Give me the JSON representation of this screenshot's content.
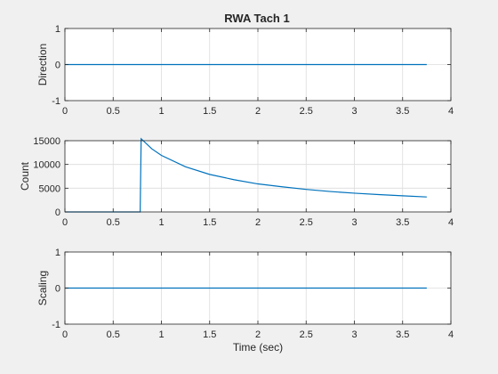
{
  "figure": {
    "title": "RWA Tach 1"
  },
  "colors": {
    "line": "#0072bd",
    "axes_bg": "#ffffff",
    "figure_bg": "#f0f0f0",
    "grid": "#dcdcdc",
    "axis": "#262626"
  },
  "chart_data": [
    {
      "type": "line",
      "title": "RWA Tach 1",
      "xlabel": "",
      "ylabel": "Direction",
      "xlim": [
        0,
        4
      ],
      "ylim": [
        -1,
        1
      ],
      "xticks": [
        0,
        0.5,
        1,
        1.5,
        2,
        2.5,
        3,
        3.5,
        4
      ],
      "xtick_labels": [
        "0",
        "0.5",
        "1",
        "1.5",
        "2",
        "2.5",
        "3",
        "3.5",
        "4"
      ],
      "yticks": [
        -1,
        0,
        1
      ],
      "ytick_labels": [
        "-1",
        "0",
        "1"
      ],
      "grid": true,
      "series": [
        {
          "x": [
            0,
            3.75
          ],
          "y": [
            0,
            0
          ]
        }
      ]
    },
    {
      "type": "line",
      "title": "",
      "xlabel": "",
      "ylabel": "Count",
      "xlim": [
        0,
        4
      ],
      "ylim": [
        0,
        15000
      ],
      "xticks": [
        0,
        0.5,
        1,
        1.5,
        2,
        2.5,
        3,
        3.5,
        4
      ],
      "xtick_labels": [
        "0",
        "0.5",
        "1",
        "1.5",
        "2",
        "2.5",
        "3",
        "3.5",
        "4"
      ],
      "yticks": [
        0,
        5000,
        10000,
        15000
      ],
      "ytick_labels": [
        "0",
        "5000",
        "10000",
        "15000"
      ],
      "grid": true,
      "series": [
        {
          "x": [
            0,
            0.78,
            0.79,
            0.9,
            1.0,
            1.25,
            1.5,
            1.75,
            2.0,
            2.25,
            2.5,
            2.75,
            3.0,
            3.25,
            3.5,
            3.75
          ],
          "y": [
            0,
            0,
            15400,
            13300,
            11900,
            9500,
            7900,
            6800,
            5900,
            5300,
            4750,
            4300,
            3950,
            3650,
            3400,
            3150
          ]
        }
      ]
    },
    {
      "type": "line",
      "title": "",
      "xlabel": "Time (sec)",
      "ylabel": "Scaling",
      "xlim": [
        0,
        4
      ],
      "ylim": [
        -1,
        1
      ],
      "xticks": [
        0,
        0.5,
        1,
        1.5,
        2,
        2.5,
        3,
        3.5,
        4
      ],
      "xtick_labels": [
        "0",
        "0.5",
        "1",
        "1.5",
        "2",
        "2.5",
        "3",
        "3.5",
        "4"
      ],
      "yticks": [
        -1,
        0,
        1
      ],
      "ytick_labels": [
        "-1",
        "0",
        "1"
      ],
      "grid": true,
      "series": [
        {
          "x": [
            0,
            3.75
          ],
          "y": [
            0,
            0
          ]
        }
      ]
    }
  ]
}
